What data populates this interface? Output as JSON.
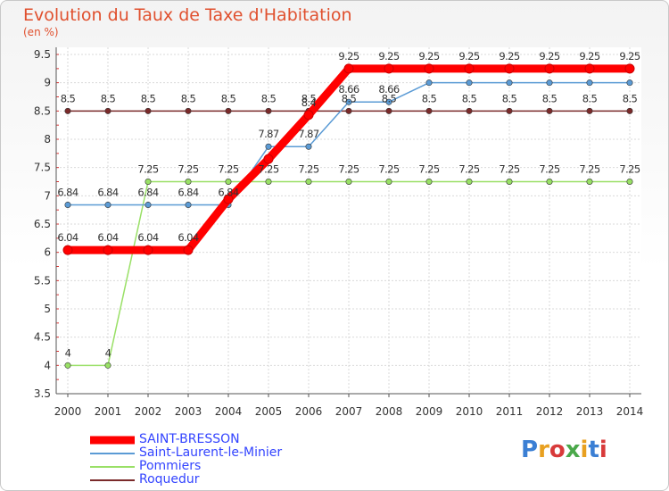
{
  "header": {
    "title": "Evolution du Taux de Taxe d'Habitation",
    "unit": "(en %)"
  },
  "colors": {
    "title": "#e0502e",
    "legend_text": "#3344ff"
  },
  "chart_data": {
    "type": "line",
    "title": "Evolution du Taux de Taxe d'Habitation",
    "ylabel": "(en %)",
    "xlabel": "",
    "x": [
      "2000",
      "2001",
      "2002",
      "2003",
      "2004",
      "2005",
      "2006",
      "2007",
      "2008",
      "2009",
      "2010",
      "2011",
      "2012",
      "2013",
      "2014"
    ],
    "ylim": [
      3.5,
      9.5
    ],
    "yticks": [
      "3.5",
      "4",
      "4.5",
      "5",
      "5.5",
      "6",
      "6.5",
      "7",
      "7.5",
      "8",
      "8.5",
      "9",
      "9.5"
    ],
    "grid": true,
    "series": [
      {
        "name": "SAINT-BRESSON",
        "color": "#ff0000",
        "values": [
          6.04,
          6.04,
          6.04,
          6.04,
          6.94,
          7.65,
          8.43,
          9.25,
          9.25,
          9.25,
          9.25,
          9.25,
          9.25,
          9.25,
          9.25
        ],
        "labels": [
          "6.04",
          "6.04",
          "6.04",
          "6.04",
          "",
          "",
          "8.4",
          "9.25",
          "9.25",
          "9.25",
          "9.25",
          "9.25",
          "9.25",
          "9.25",
          "9.25"
        ]
      },
      {
        "name": "Saint-Laurent-le-Minier",
        "color": "#5b9bd5",
        "values": [
          6.84,
          6.84,
          6.84,
          6.84,
          6.84,
          7.87,
          7.87,
          8.66,
          8.66,
          9.0,
          9.0,
          9.0,
          9.0,
          9.0,
          9.0
        ],
        "labels": [
          "6.84",
          "6.84",
          "6.84",
          "6.84",
          "6.84",
          "7.87",
          "7.87",
          "8.66",
          "8.66",
          "",
          "",
          "",
          "",
          "",
          ""
        ]
      },
      {
        "name": "Pommiers",
        "color": "#99e066",
        "values": [
          4,
          4,
          7.25,
          7.25,
          7.25,
          7.25,
          7.25,
          7.25,
          7.25,
          7.25,
          7.25,
          7.25,
          7.25,
          7.25,
          7.25
        ],
        "labels": [
          "4",
          "4",
          "7.25",
          "7.25",
          "7.25",
          "7.25",
          "7.25",
          "7.25",
          "7.25",
          "7.25",
          "7.25",
          "7.25",
          "7.25",
          "7.25",
          "7.25"
        ]
      },
      {
        "name": "Roquedur",
        "color": "#7a2a2a",
        "values": [
          8.5,
          8.5,
          8.5,
          8.5,
          8.5,
          8.5,
          8.5,
          8.5,
          8.5,
          8.5,
          8.5,
          8.5,
          8.5,
          8.5,
          8.5
        ],
        "labels": [
          "8.5",
          "8.5",
          "8.5",
          "8.5",
          "8.5",
          "8.5",
          "8.5",
          "8.5",
          "8.5",
          "8.5",
          "8.5",
          "8.5",
          "8.5",
          "8.5",
          "8.5"
        ]
      }
    ],
    "legend_position": "bottom-left"
  },
  "legend": {
    "items": [
      {
        "label": "SAINT-BRESSON",
        "color": "#ff0000"
      },
      {
        "label": "Saint-Laurent-le-Minier",
        "color": "#5b9bd5"
      },
      {
        "label": "Pommiers",
        "color": "#99e066"
      },
      {
        "label": "Roquedur",
        "color": "#7a2a2a"
      }
    ]
  },
  "brand": {
    "logo": "Proxiti"
  }
}
